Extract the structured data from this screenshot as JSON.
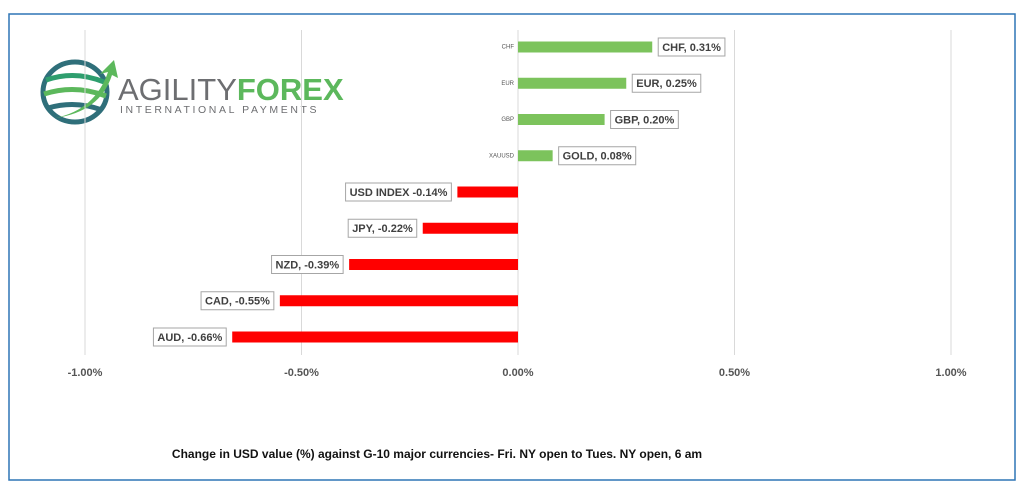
{
  "logo": {
    "name_part1": "AGILITY",
    "name_part2": "FOREX",
    "tagline": "INTERNATIONAL PAYMENTS"
  },
  "chart_data": {
    "type": "hbar",
    "title": "Change in  USD value (%)  against  G-10 major currencies-  Fri. NY open to Tues. NY open, 6 am",
    "categories": [
      "CHF",
      "EUR",
      "GBP",
      "XAUUSD",
      null,
      null,
      null,
      null,
      null
    ],
    "values": [
      0.31,
      0.25,
      0.2,
      0.08,
      -0.14,
      -0.22,
      -0.39,
      -0.55,
      -0.66
    ],
    "value_labels": [
      "CHF, 0.31%",
      "EUR, 0.25%",
      "GBP, 0.20%",
      "GOLD, 0.08%",
      "USD INDEX -0.14%",
      "JPY, -0.22%",
      "NZD, -0.39%",
      "CAD, -0.55%",
      "AUD, -0.66%"
    ],
    "positive_color": "#7cc35c",
    "negative_color": "#ff0000",
    "xlim": [
      -1.0,
      1.0
    ],
    "xticks": [
      {
        "value": -1.0,
        "label": "-1.00%"
      },
      {
        "value": -0.5,
        "label": "-0.50%"
      },
      {
        "value": 0,
        "label": "0.00%"
      },
      {
        "value": 0.5,
        "label": "0.50%"
      },
      {
        "value": 1.0,
        "label": "1.00%"
      }
    ],
    "grid": true
  }
}
